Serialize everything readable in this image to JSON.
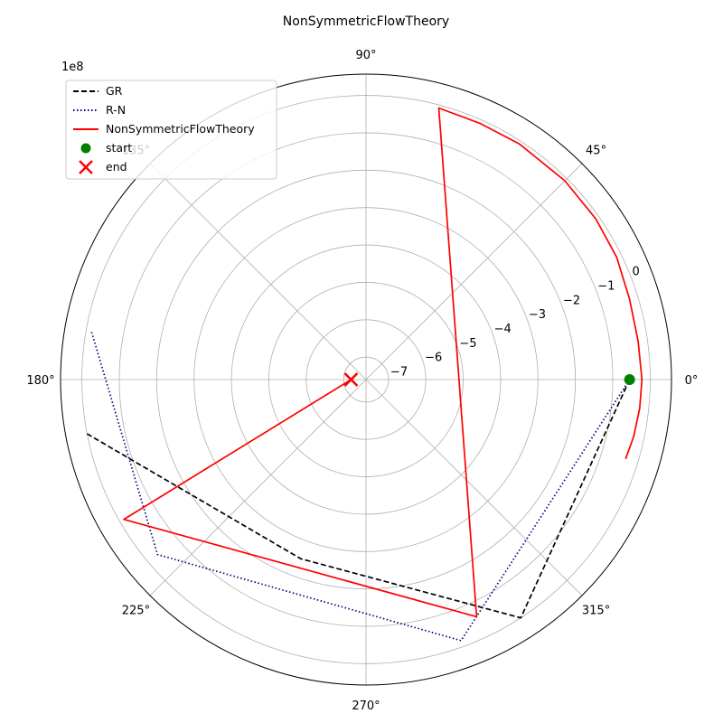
{
  "chart_data": {
    "type": "line",
    "projection": "polar",
    "title": "NonSymmetricFlowTheory",
    "radial_offset_label": "1e8",
    "angle_ticks": [
      "0°",
      "45°",
      "90°",
      "135°",
      "180°",
      "225°",
      "270°",
      "315°"
    ],
    "radial_ticks": [
      0,
      -1,
      -2,
      -3,
      -4,
      -5,
      -6,
      -7
    ],
    "radial_tick_labels": [
      "0",
      "−1",
      "−2",
      "−3",
      "−4",
      "−5",
      "−6",
      "−7"
    ],
    "rlim": [
      -7.6,
      0.57
    ],
    "grid": true,
    "legend_position": "upper-left",
    "series": [
      {
        "name": "GR",
        "color": "#000000",
        "dash": "dashed",
        "points": [
          {
            "theta_deg": 0.0,
            "r": -0.55
          },
          {
            "theta_deg": -57.0,
            "r": 0.0
          },
          {
            "theta_deg": -110.0,
            "r": -2.5
          },
          {
            "theta_deg": 191.0,
            "r": 0.0
          }
        ]
      },
      {
        "name": "R-N",
        "color": "#000080",
        "dash": "dotted",
        "points": [
          {
            "theta_deg": 0.0,
            "r": -0.55
          },
          {
            "theta_deg": -70.0,
            "r": -0.17
          },
          {
            "theta_deg": -140.0,
            "r": -0.32
          },
          {
            "theta_deg": 170.0,
            "r": -0.14
          }
        ]
      },
      {
        "name": "NonSymmetricFlowTheory",
        "color": "#ff0000",
        "dash": "solid",
        "points": [
          {
            "theta_deg": -17.0,
            "r": -0.34
          },
          {
            "theta_deg": -12.0,
            "r": -0.28
          },
          {
            "theta_deg": -6.0,
            "r": -0.24
          },
          {
            "theta_deg": 0.0,
            "r": -0.22
          },
          {
            "theta_deg": 8.0,
            "r": -0.25
          },
          {
            "theta_deg": 17.0,
            "r": -0.23
          },
          {
            "theta_deg": 26.0,
            "r": -0.14
          },
          {
            "theta_deg": 35.0,
            "r": -0.1
          },
          {
            "theta_deg": 45.0,
            "r": -0.08
          },
          {
            "theta_deg": 57.0,
            "r": -0.08
          },
          {
            "theta_deg": 66.0,
            "r": -0.1
          },
          {
            "theta_deg": 75.0,
            "r": -0.08
          },
          {
            "theta_deg": -65.0,
            "r": -0.6
          },
          {
            "theta_deg": -150.0,
            "r": -0.12
          },
          {
            "theta_deg": 180.0,
            "r": -7.2
          }
        ]
      }
    ],
    "markers": [
      {
        "name": "start",
        "shape": "circle",
        "color": "#008000",
        "theta_deg": 0.0,
        "r": -0.55
      },
      {
        "name": "end",
        "shape": "x",
        "color": "#ff0000",
        "theta_deg": 180.0,
        "r": -7.2
      }
    ]
  }
}
